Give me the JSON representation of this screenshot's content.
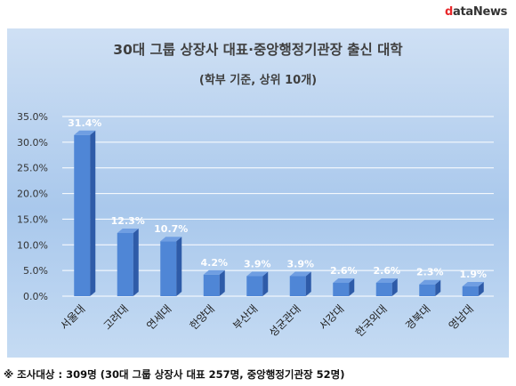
{
  "logo": {
    "first": "d",
    "rest": "ataNews"
  },
  "footnote": "※ 조사대상 : 309명 (30대 그룹 상장사 대표 257명, 중앙행정기관장 52명)",
  "chart_data": {
    "type": "bar",
    "title": "30대 그룹 상장사 대표·중앙행정기관장 출신 대학",
    "subtitle": "(학부 기준, 상위 10개)",
    "categories": [
      "서울대",
      "고려대",
      "연세대",
      "한양대",
      "부산대",
      "성균관대",
      "서강대",
      "한국외대",
      "경북대",
      "영남대"
    ],
    "values": [
      31.4,
      12.3,
      10.7,
      4.2,
      3.9,
      3.9,
      2.6,
      2.6,
      2.3,
      1.9
    ],
    "value_labels": [
      "31.4%",
      "12.3%",
      "10.7%",
      "4.2%",
      "3.9%",
      "3.9%",
      "2.6%",
      "2.6%",
      "2.3%",
      "1.9%"
    ],
    "ylim": [
      0,
      35
    ],
    "yticks": [
      "0.0%",
      "5.0%",
      "10.0%",
      "15.0%",
      "20.0%",
      "25.0%",
      "30.0%",
      "35.0%"
    ],
    "grid": true,
    "colors": {
      "bar_front": "#4f86d6",
      "bar_dark": "#2e5ba8",
      "bar_top": "#6f9ee2",
      "gridline": "#ffffff"
    }
  }
}
